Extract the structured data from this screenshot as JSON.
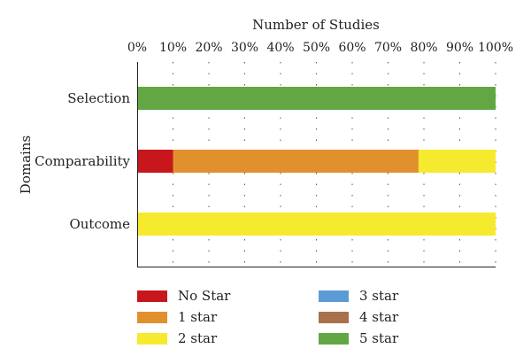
{
  "chart_data": {
    "type": "bar",
    "orientation": "horizontal",
    "stacked": true,
    "title": "",
    "xlabel": "Number of Studies",
    "ylabel": "Domains",
    "xlim": [
      0,
      100
    ],
    "x_ticks": [
      "0%",
      "10%",
      "20%",
      "30%",
      "40%",
      "50%",
      "60%",
      "70%",
      "80%",
      "90%",
      "100%"
    ],
    "categories": [
      "Selection",
      "Comparability",
      "Outcome"
    ],
    "series": [
      {
        "name": "No Star",
        "color": "#c8171c",
        "values": [
          0,
          10,
          0
        ]
      },
      {
        "name": "1 star",
        "color": "#e0912e",
        "values": [
          0,
          68.5,
          0
        ]
      },
      {
        "name": "2 star",
        "color": "#f6ea2e",
        "values": [
          0,
          21.5,
          100
        ]
      },
      {
        "name": "3 star",
        "color": "#5b9bd5",
        "values": [
          0,
          0,
          0
        ]
      },
      {
        "name": "4 star",
        "color": "#a8714b",
        "values": [
          0,
          0,
          0
        ]
      },
      {
        "name": "5 star",
        "color": "#62a744",
        "values": [
          100,
          0,
          0
        ]
      }
    ],
    "grid": "dotted vertical",
    "legend_position": "bottom"
  }
}
